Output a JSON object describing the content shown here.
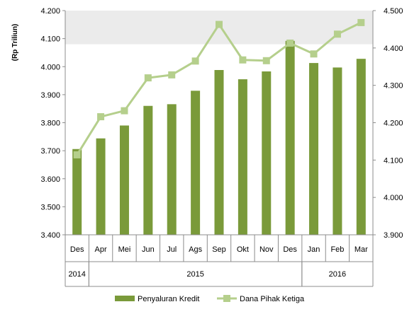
{
  "chart_data": {
    "type": "bar+line",
    "categories": [
      "Des",
      "Apr",
      "Mei",
      "Jun",
      "Jul",
      "Ags",
      "Sep",
      "Okt",
      "Nov",
      "Des",
      "Jan",
      "Feb",
      "Mar"
    ],
    "year_groups": [
      {
        "label": "2014",
        "start": 0,
        "end": 0
      },
      {
        "label": "2015",
        "start": 1,
        "end": 9
      },
      {
        "label": "2016",
        "start": 10,
        "end": 12
      }
    ],
    "ylabel": "(Rp Triliun)",
    "y_left": {
      "min": 3400,
      "max": 4200,
      "ticks": [
        "3.400",
        "3.500",
        "3.600",
        "3.700",
        "3.800",
        "3.900",
        "4.000",
        "4.100",
        "4.200"
      ]
    },
    "y_right": {
      "min": 3900,
      "max": 4500,
      "ticks": [
        "3.900",
        "4.000",
        "4.100",
        "4.200",
        "4.300",
        "4.400",
        "4.500"
      ]
    },
    "highlight_band_left": [
      4080,
      4200
    ],
    "series": [
      {
        "name": "Penyaluran Kredit",
        "kind": "bar",
        "axis": "left",
        "color": "#7a9a3a",
        "values": [
          3706,
          3744,
          3790,
          3860,
          3866,
          3914,
          3988,
          3955,
          3983,
          4092,
          4013,
          3997,
          4028
        ]
      },
      {
        "name": "Dana Pihak Ketiga",
        "kind": "line",
        "axis": "right",
        "color": "#b5cf8c",
        "values": [
          4114,
          4216,
          4232,
          4320,
          4328,
          4365,
          4463,
          4368,
          4366,
          4413,
          4384,
          4437,
          4468
        ]
      }
    ],
    "grid": false,
    "legend_position": "bottom"
  }
}
